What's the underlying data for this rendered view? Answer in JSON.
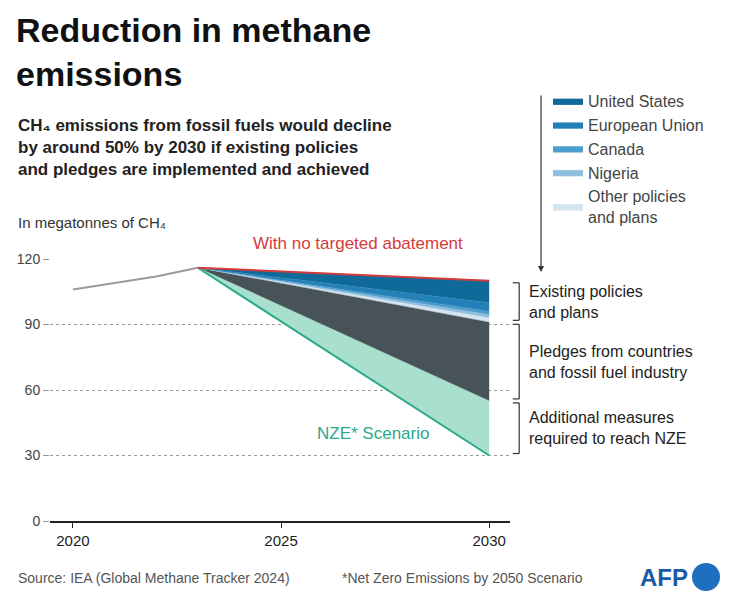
{
  "chart_data": {
    "type": "area",
    "title": "Reduction in methane\nemissions",
    "subtitle": "CH₄ emissions from fossil fuels would decline\nby around 50% by 2030 if existing policies\nand pledges are implemented and achieved",
    "y_label": "In megatonnes of CH₄",
    "source": "Source: IEA (Global Methane Tracker 2024)",
    "note": "*Net Zero Emissions by 2050 Scenario",
    "logo": "AFP",
    "xlim": [
      2019.45,
      2030.5
    ],
    "xticks": [
      2020,
      2025,
      2030
    ],
    "ylim": [
      0,
      120
    ],
    "yticks": [
      0,
      30,
      60,
      90,
      120
    ],
    "grid": true,
    "legend": "top right",
    "stacked": true,
    "series": [
      {
        "type": "line",
        "color": "#9a9a9a",
        "x": [
          2020,
          2022,
          2023
        ],
        "values": [
          106,
          112,
          116
        ]
      },
      {
        "type": "line",
        "label": "NZE* Scenario",
        "color": "#2aa98b",
        "x": [
          2023,
          2030
        ],
        "values": [
          116,
          30
        ]
      },
      {
        "type": "area",
        "label": "Additional measures\nrequired to reach NZE",
        "color": "#a8dfcd",
        "x": [
          2023,
          2030
        ],
        "values": [
          0,
          25
        ]
      },
      {
        "type": "area",
        "label": "Pledges from countries\nand fossil fuel industry",
        "color": "#475358",
        "x": [
          2023,
          2030
        ],
        "values": [
          0,
          36
        ]
      },
      {
        "type": "area",
        "name": "Other policies\nand plans",
        "color": "#d5e5f0",
        "x": [
          2023,
          2030
        ],
        "values": [
          0,
          2
        ]
      },
      {
        "type": "area",
        "name": "Nigeria",
        "color": "#8fbedd",
        "x": [
          2023,
          2030
        ],
        "values": [
          0,
          1.5
        ]
      },
      {
        "type": "area",
        "name": "Canada",
        "color": "#4c9ccc",
        "x": [
          2023,
          2030
        ],
        "values": [
          0,
          1.5
        ]
      },
      {
        "type": "area",
        "name": "European Union",
        "color": "#2680b8",
        "x": [
          2023,
          2030
        ],
        "values": [
          0,
          4
        ]
      },
      {
        "type": "area",
        "name": "United States",
        "color": "#0f6a99",
        "x": [
          2023,
          2030
        ],
        "values": [
          0,
          10
        ]
      },
      {
        "type": "line",
        "label": "With no targeted abatement",
        "color": "#d43b3b",
        "x": [
          2023,
          2030
        ],
        "values": [
          116,
          110
        ]
      }
    ],
    "groups": [
      {
        "label": "Existing policies\nand plans",
        "members": [
          "United States",
          "European Union",
          "Canada",
          "Nigeria",
          "Other policies\nand plans"
        ]
      }
    ]
  }
}
